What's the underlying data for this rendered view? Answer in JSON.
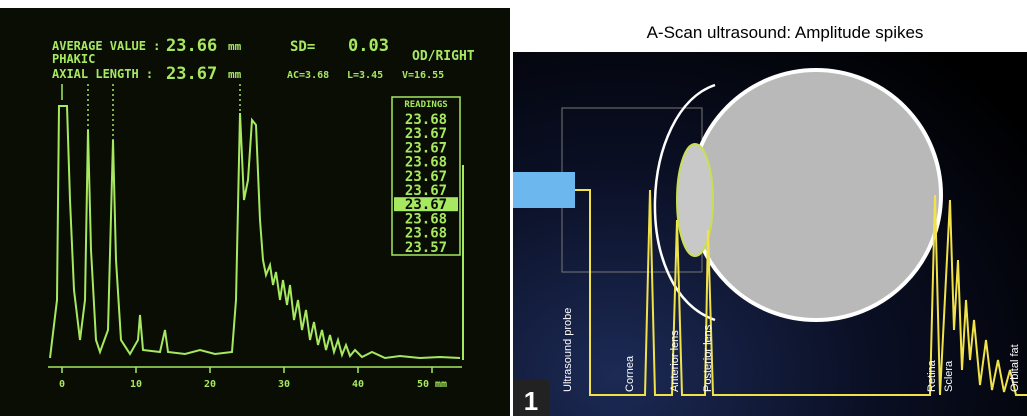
{
  "left_panel": {
    "header": {
      "average_label": "AVERAGE VALUE :",
      "average_value": "23.66",
      "average_unit": "mm",
      "sd_label": "SD=",
      "sd_value": "0.03",
      "eye": "OD/RIGHT",
      "lens_status": "PHAKIC",
      "axial_label": "AXIAL LENGTH :",
      "axial_value": "23.67",
      "axial_unit": "mm",
      "ac": "AC=3.68",
      "lens": "L=3.45",
      "vitreous": "V=16.55"
    },
    "readings": {
      "title": "READINGS",
      "values": [
        "23.68",
        "23.67",
        "23.67",
        "23.68",
        "23.67",
        "23.67",
        "23.67",
        "23.68",
        "23.68",
        "23.57"
      ],
      "selected": 6
    },
    "axis_labels": [
      "0",
      "10",
      "20",
      "30",
      "40",
      "50 mm"
    ]
  },
  "right_panel": {
    "title": "A-Scan ultrasound: Amplitude spikes",
    "figure_number": "1",
    "labels": [
      "Ultrasound probe",
      "Cornea",
      "Anterior lens",
      "Posterior lens",
      "Retina",
      "Sclera",
      "Orbital fat"
    ]
  }
}
